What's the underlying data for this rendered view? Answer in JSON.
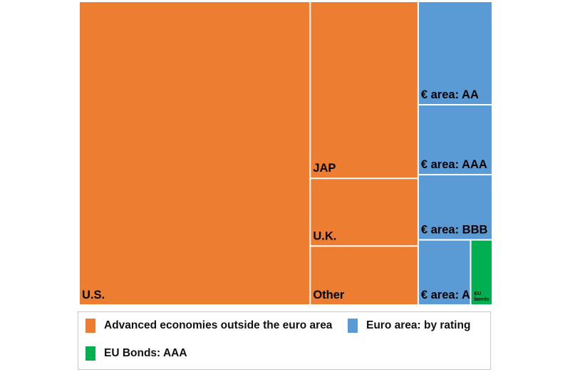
{
  "chart_data": {
    "type": "treemap",
    "colors": {
      "advanced": "#ED7D31",
      "euro": "#5B9BD5",
      "eu": "#00B050"
    },
    "tiles": [
      {
        "label": "U.S.",
        "group": "advanced",
        "value": 59.5
      },
      {
        "label": "JAP",
        "group": "advanced",
        "value": 16.2
      },
      {
        "label": "U.K.",
        "group": "advanced",
        "value": 6.2
      },
      {
        "label": "Other",
        "group": "advanced",
        "value": 5.4
      },
      {
        "label": "€ area: AA",
        "group": "euro",
        "value": 6.5
      },
      {
        "label": "€ area: AAA",
        "group": "euro",
        "value": 4.4
      },
      {
        "label": "€ area: BBB",
        "group": "euro",
        "value": 4.1
      },
      {
        "label": "€ area: A",
        "group": "euro",
        "value": 2.9
      },
      {
        "label": "EU bonds",
        "group": "eu",
        "value": 1.2
      }
    ],
    "legend": [
      {
        "label": "Advanced economies outside the euro area",
        "group": "advanced"
      },
      {
        "label": "Euro area: by rating",
        "group": "euro"
      },
      {
        "label": "EU Bonds: AAA",
        "group": "eu"
      }
    ]
  }
}
